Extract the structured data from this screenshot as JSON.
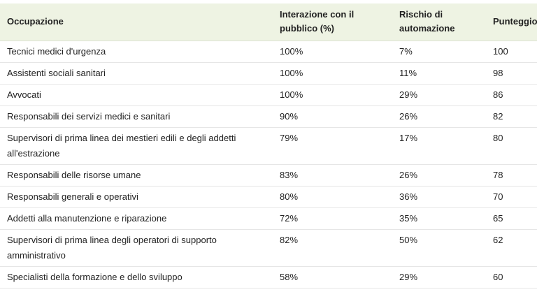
{
  "table": {
    "headers": [
      "Occupazione",
      "Interazione con il pubblico (%)",
      "Rischio di automazione",
      "Punteggio"
    ],
    "rows": [
      [
        "Tecnici medici d'urgenza",
        "100%",
        "7%",
        "100"
      ],
      [
        "Assistenti sociali sanitari",
        "100%",
        "11%",
        "98"
      ],
      [
        "Avvocati",
        "100%",
        "29%",
        "86"
      ],
      [
        "Responsabili dei servizi medici e sanitari",
        "90%",
        "26%",
        "82"
      ],
      [
        "Supervisori di prima linea dei mestieri edili e degli addetti all'estrazione",
        "79%",
        "17%",
        "80"
      ],
      [
        "Responsabili delle risorse umane",
        "83%",
        "26%",
        "78"
      ],
      [
        "Responsabili generali e operativi",
        "80%",
        "36%",
        "70"
      ],
      [
        "Addetti alla manutenzione e riparazione",
        "72%",
        "35%",
        "65"
      ],
      [
        "Supervisori di prima linea degli operatori di supporto amministrativo",
        "82%",
        "50%",
        "62"
      ],
      [
        "Specialisti della formazione e dello sviluppo",
        "58%",
        "29%",
        "60"
      ]
    ]
  }
}
